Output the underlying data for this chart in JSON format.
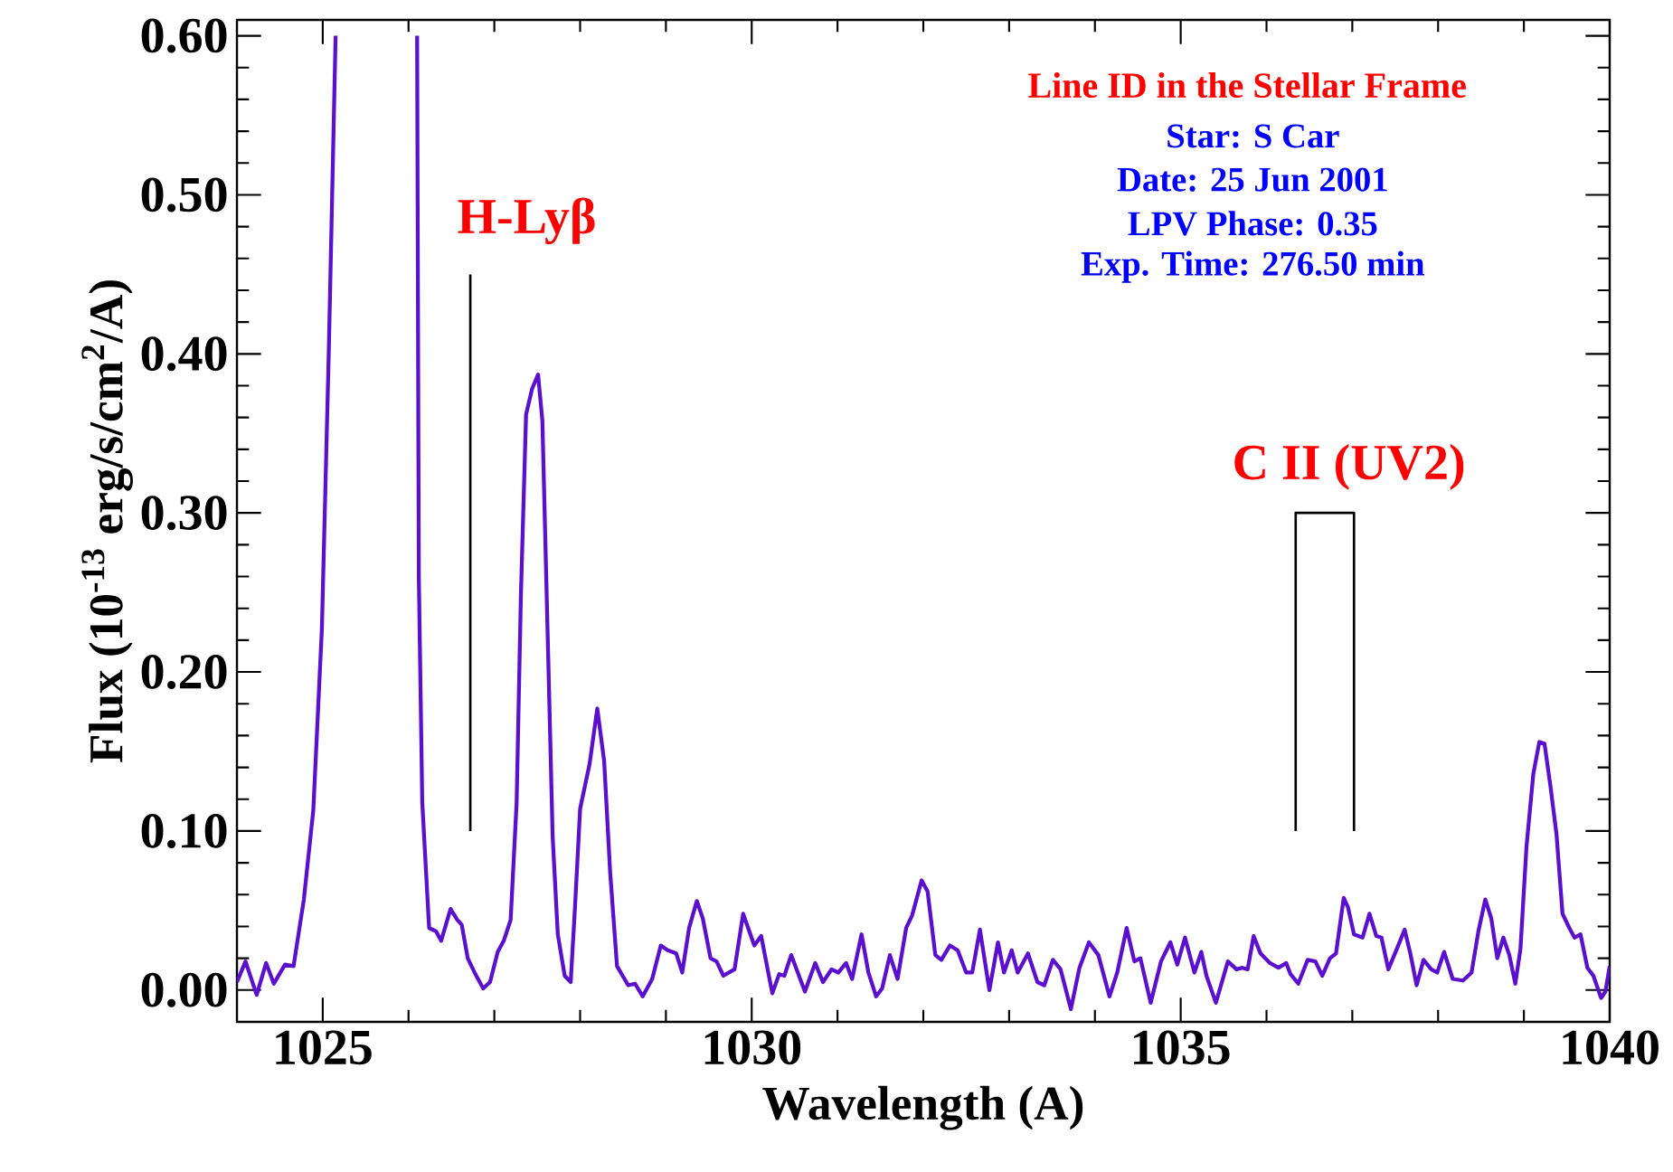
{
  "chart_data": {
    "type": "line",
    "title": "Line ID in the Stellar Frame",
    "xlabel": "Wavelength (A)",
    "ylabel": "Flux (10$^{-13}$ erg/s/cm$^{2}$/A)",
    "xlim": [
      1024,
      1040
    ],
    "ylim": [
      -0.02,
      0.61
    ],
    "xticks": [
      1025,
      1030,
      1035,
      1040
    ],
    "yticks": [
      {
        "value": 0,
        "label": "0.00"
      },
      {
        "value": 0.1,
        "label": "0.10"
      },
      {
        "value": 0.2,
        "label": "0.20"
      },
      {
        "value": 0.3,
        "label": "0.30"
      },
      {
        "value": 0.4,
        "label": "0.40"
      },
      {
        "value": 0.5,
        "label": "0.50"
      },
      {
        "value": 0.6,
        "label": "0.60"
      }
    ],
    "annotations": [
      "Star: S Car",
      "Date: 25 Jun 2001",
      "LPV Phase: 0.35",
      "Exp. Time: 276.50 min",
      {
        "text": "H-Lyβ",
        "x": 1026.72,
        "y": 0.45
      },
      {
        "text": "C II (UV2)",
        "x": 1036.68,
        "y": 0.3
      }
    ],
    "series": [
      {
        "color": "#5a10cc",
        "x": [
          1024.0,
          1024.1,
          1024.23,
          1024.34,
          1024.43,
          1024.56,
          1024.66,
          1024.78,
          1024.89,
          1024.99,
          1025.07,
          1025.15,
          1025.6,
          1026.1,
          1026.12,
          1026.16,
          1026.24,
          1026.32,
          1026.38,
          1026.49,
          1026.57,
          1026.62,
          1026.69,
          1026.77,
          1026.87,
          1026.95,
          1027.04,
          1027.11,
          1027.19,
          1027.26,
          1027.31,
          1027.37,
          1027.44,
          1027.51,
          1027.56,
          1027.62,
          1027.68,
          1027.74,
          1027.82,
          1027.89,
          1027.94,
          1028.0,
          1028.11,
          1028.2,
          1028.28,
          1028.35,
          1028.43,
          1028.56,
          1028.64,
          1028.73,
          1028.84,
          1028.94,
          1029.02,
          1029.12,
          1029.19,
          1029.27,
          1029.36,
          1029.43,
          1029.52,
          1029.59,
          1029.67,
          1029.8,
          1029.9,
          1030.03,
          1030.11,
          1030.24,
          1030.32,
          1030.38,
          1030.46,
          1030.62,
          1030.74,
          1030.83,
          1030.93,
          1031.01,
          1031.1,
          1031.17,
          1031.28,
          1031.36,
          1031.45,
          1031.52,
          1031.61,
          1031.7,
          1031.8,
          1031.87,
          1031.98,
          1032.05,
          1032.14,
          1032.21,
          1032.31,
          1032.4,
          1032.5,
          1032.57,
          1032.66,
          1032.77,
          1032.87,
          1032.94,
          1033.03,
          1033.1,
          1033.22,
          1033.33,
          1033.41,
          1033.51,
          1033.6,
          1033.72,
          1033.82,
          1033.93,
          1034.04,
          1034.17,
          1034.26,
          1034.37,
          1034.46,
          1034.53,
          1034.65,
          1034.77,
          1034.88,
          1034.96,
          1035.05,
          1035.16,
          1035.24,
          1035.3,
          1035.41,
          1035.55,
          1035.65,
          1035.72,
          1035.78,
          1035.85,
          1035.93,
          1036.04,
          1036.14,
          1036.23,
          1036.28,
          1036.37,
          1036.48,
          1036.57,
          1036.65,
          1036.74,
          1036.81,
          1036.9,
          1036.95,
          1037.02,
          1037.12,
          1037.2,
          1037.28,
          1037.34,
          1037.42,
          1037.52,
          1037.61,
          1037.68,
          1037.75,
          1037.83,
          1037.92,
          1037.99,
          1038.07,
          1038.17,
          1038.29,
          1038.39,
          1038.47,
          1038.55,
          1038.62,
          1038.69,
          1038.76,
          1038.83,
          1038.9,
          1038.96,
          1039.03,
          1039.11,
          1039.18,
          1039.24,
          1039.31,
          1039.38,
          1039.45,
          1039.53,
          1039.59,
          1039.66,
          1039.74,
          1039.81,
          1039.9,
          1039.95,
          1040.0
        ],
        "values": [
          0.005,
          0.018,
          -0.003,
          0.017,
          0.004,
          0.016,
          0.015,
          0.057,
          0.113,
          0.227,
          0.4,
          0.6,
          null,
          0.6,
          0.26,
          0.118,
          0.039,
          0.037,
          0.031,
          0.051,
          0.044,
          0.041,
          0.02,
          0.011,
          0.001,
          0.005,
          0.024,
          0.031,
          0.044,
          0.118,
          0.249,
          0.362,
          0.378,
          0.387,
          0.358,
          0.227,
          0.096,
          0.035,
          0.009,
          0.005,
          0.052,
          0.114,
          0.142,
          0.177,
          0.144,
          0.074,
          0.015,
          0.003,
          0.004,
          -0.004,
          0.007,
          0.028,
          0.025,
          0.023,
          0.011,
          0.039,
          0.056,
          0.045,
          0.02,
          0.018,
          0.009,
          0.013,
          0.048,
          0.028,
          0.034,
          -0.002,
          0.01,
          0.009,
          0.022,
          -0.001,
          0.017,
          0.005,
          0.013,
          0.011,
          0.017,
          0.007,
          0.035,
          0.011,
          -0.004,
          0.001,
          0.022,
          0.007,
          0.039,
          0.047,
          0.069,
          0.062,
          0.022,
          0.019,
          0.028,
          0.025,
          0.011,
          0.011,
          0.038,
          0.0,
          0.03,
          0.011,
          0.025,
          0.011,
          0.023,
          0.005,
          0.003,
          0.019,
          0.013,
          -0.012,
          0.014,
          0.03,
          0.022,
          -0.004,
          0.011,
          0.039,
          0.018,
          0.02,
          -0.008,
          0.018,
          0.03,
          0.016,
          0.033,
          0.011,
          0.024,
          0.009,
          -0.008,
          0.018,
          0.013,
          0.014,
          0.013,
          0.034,
          0.023,
          0.017,
          0.014,
          0.017,
          0.01,
          0.004,
          0.019,
          0.018,
          0.009,
          0.02,
          0.023,
          0.058,
          0.052,
          0.035,
          0.033,
          0.048,
          0.034,
          0.033,
          0.013,
          0.026,
          0.038,
          0.022,
          0.003,
          0.019,
          0.013,
          0.011,
          0.024,
          0.007,
          0.006,
          0.011,
          0.037,
          0.057,
          0.045,
          0.02,
          0.033,
          0.022,
          0.004,
          0.026,
          0.09,
          0.136,
          0.156,
          0.155,
          0.128,
          0.098,
          0.048,
          0.039,
          0.033,
          0.035,
          0.014,
          0.009,
          -0.005,
          -0.001,
          0.015
        ]
      },
      {
        "color": "#000000",
        "x": [
          1026.72,
          1026.72
        ],
        "values": [
          0.1,
          0.45
        ]
      },
      {
        "color": "#000000",
        "x": [
          1036.34,
          1036.34,
          1037.02,
          1037.02
        ],
        "values": [
          0.1,
          0.3,
          0.3,
          0.1
        ]
      }
    ]
  }
}
